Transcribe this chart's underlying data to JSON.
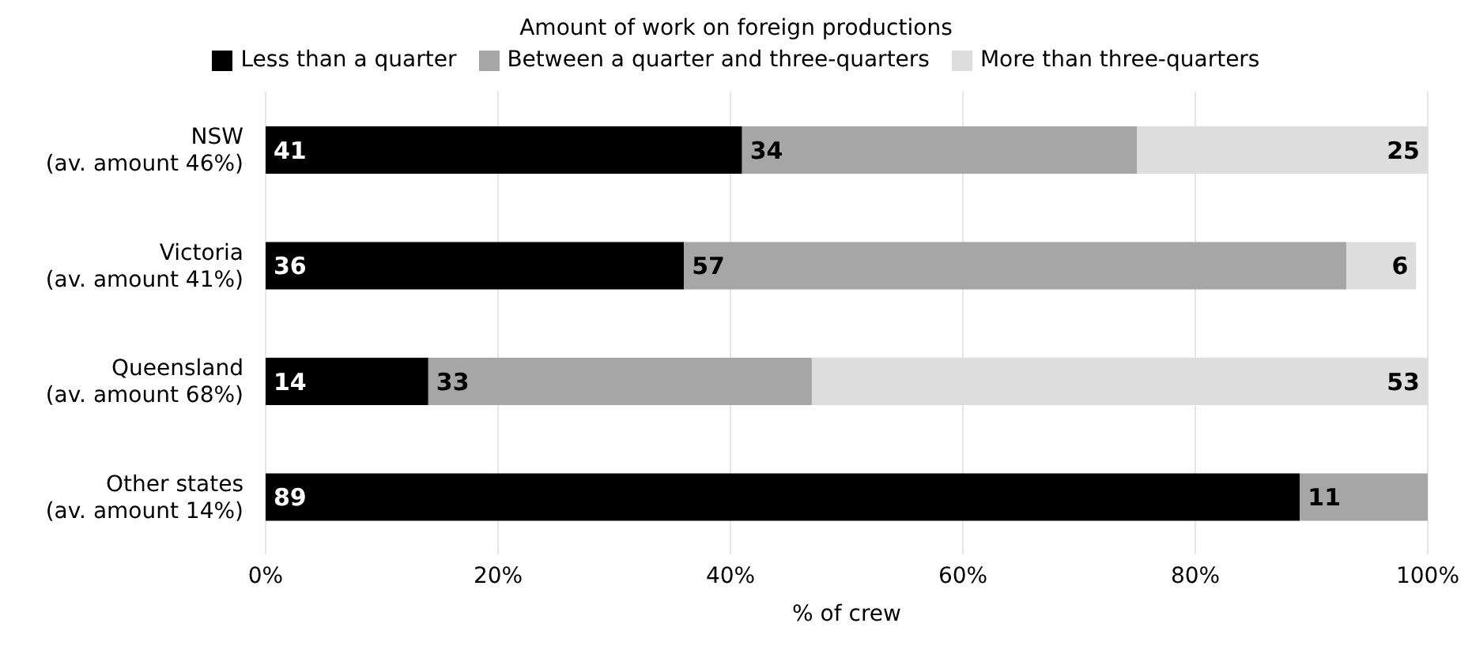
{
  "chart_data": {
    "type": "bar",
    "orientation": "horizontal",
    "stacked": true,
    "legend_title": "Amount of work on foreign productions",
    "xlabel": "% of crew",
    "categories": [
      "NSW\n(av. amount 46%)",
      "Victoria\n(av. amount 41%)",
      "Queensland\n(av. amount 68%)",
      "Other states\n(av. amount 14%)"
    ],
    "series": [
      {
        "name": "Less than a quarter",
        "color": "#000000",
        "values": [
          41,
          36,
          14,
          89
        ]
      },
      {
        "name": "Between a quarter and three-quarters",
        "color": "#a6a6a6",
        "values": [
          34,
          57,
          33,
          11
        ]
      },
      {
        "name": "More than three-quarters",
        "color": "#dddddd",
        "values": [
          25,
          6,
          53,
          null
        ]
      }
    ],
    "xlim": [
      0,
      100
    ],
    "xticks": [
      {
        "value": 0,
        "label": "0%"
      },
      {
        "value": 20,
        "label": "20%"
      },
      {
        "value": 40,
        "label": "40%"
      },
      {
        "value": 60,
        "label": "60%"
      },
      {
        "value": 80,
        "label": "80%"
      },
      {
        "value": 100,
        "label": "100%"
      }
    ],
    "grid": "x",
    "legend": "top",
    "data_labels": true
  }
}
